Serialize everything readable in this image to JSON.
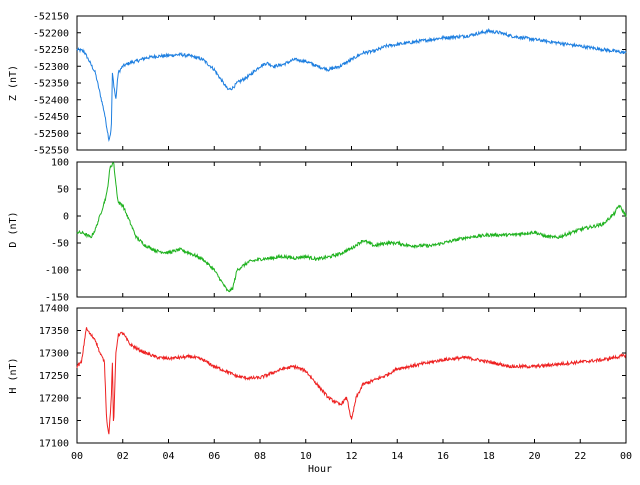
{
  "chart_data": [
    {
      "type": "line",
      "ylabel": "Z (nT)",
      "ylim": [
        -52550,
        -52150
      ],
      "yticks": [
        -52150,
        -52200,
        -52250,
        -52300,
        -52350,
        -52400,
        -52450,
        -52500,
        -52550
      ],
      "xlim": [
        0,
        24
      ],
      "color": "#1e7fe0",
      "x": [
        0,
        0.3,
        0.5,
        0.8,
        1.0,
        1.2,
        1.4,
        1.5,
        1.55,
        1.6,
        1.7,
        1.8,
        2.0,
        2.3,
        2.6,
        3.0,
        3.5,
        4.0,
        4.5,
        5.0,
        5.5,
        6.0,
        6.3,
        6.6,
        6.8,
        7.0,
        7.5,
        8.0,
        8.3,
        8.6,
        9.0,
        9.5,
        10.0,
        10.5,
        11.0,
        11.5,
        12.0,
        12.5,
        13.0,
        13.5,
        14.0,
        15.0,
        16.0,
        17.0,
        18.0,
        18.5,
        19.0,
        20.0,
        21.0,
        22.0,
        23.0,
        23.5,
        24.0
      ],
      "values": [
        -52250,
        -52255,
        -52280,
        -52320,
        -52380,
        -52440,
        -52520,
        -52490,
        -52320,
        -52350,
        -52400,
        -52320,
        -52300,
        -52290,
        -52285,
        -52275,
        -52270,
        -52268,
        -52265,
        -52270,
        -52280,
        -52310,
        -52340,
        -52370,
        -52365,
        -52350,
        -52330,
        -52300,
        -52290,
        -52300,
        -52295,
        -52280,
        -52285,
        -52300,
        -52310,
        -52300,
        -52280,
        -52260,
        -52255,
        -52240,
        -52235,
        -52225,
        -52215,
        -52210,
        -52195,
        -52200,
        -52210,
        -52220,
        -52230,
        -52240,
        -52250,
        -52255,
        -52260
      ]
    },
    {
      "type": "line",
      "ylabel": "D (nT)",
      "ylim": [
        -150,
        100
      ],
      "yticks": [
        100,
        50,
        0,
        -50,
        -100,
        -150
      ],
      "xlim": [
        0,
        24
      ],
      "color": "#1fb21f",
      "x": [
        0,
        0.3,
        0.6,
        0.8,
        1.0,
        1.3,
        1.45,
        1.6,
        1.7,
        1.8,
        2.0,
        2.3,
        2.6,
        3.0,
        3.5,
        4.0,
        4.5,
        5.0,
        5.5,
        6.0,
        6.3,
        6.6,
        6.8,
        7.0,
        7.5,
        8.0,
        8.5,
        9.0,
        9.5,
        10.0,
        10.5,
        11.0,
        11.5,
        12.0,
        12.5,
        13.0,
        13.5,
        14.0,
        14.5,
        15.0,
        15.5,
        16.0,
        17.0,
        18.0,
        19.0,
        20.0,
        20.5,
        21.0,
        22.0,
        23.0,
        23.5,
        23.7,
        24.0
      ],
      "values": [
        -30,
        -32,
        -40,
        -25,
        0,
        40,
        90,
        100,
        60,
        25,
        20,
        -10,
        -40,
        -55,
        -65,
        -68,
        -62,
        -70,
        -80,
        -100,
        -120,
        -140,
        -135,
        -100,
        -85,
        -80,
        -78,
        -75,
        -78,
        -75,
        -80,
        -76,
        -70,
        -60,
        -45,
        -55,
        -50,
        -50,
        -55,
        -55,
        -55,
        -50,
        -40,
        -35,
        -35,
        -30,
        -38,
        -40,
        -25,
        -15,
        5,
        20,
        0
      ]
    },
    {
      "type": "line",
      "ylabel": "H (nT)",
      "ylim": [
        17100,
        17400
      ],
      "yticks": [
        17400,
        17350,
        17300,
        17250,
        17200,
        17150,
        17100
      ],
      "xlim": [
        0,
        24
      ],
      "color": "#ee2222",
      "x": [
        0,
        0.2,
        0.4,
        0.6,
        0.8,
        1.0,
        1.2,
        1.3,
        1.4,
        1.5,
        1.55,
        1.6,
        1.7,
        1.8,
        2.0,
        2.3,
        2.6,
        3.0,
        3.5,
        4.0,
        4.5,
        5.0,
        5.5,
        6.0,
        6.5,
        7.0,
        7.5,
        8.0,
        8.5,
        9.0,
        9.5,
        10.0,
        10.5,
        11.0,
        11.5,
        11.8,
        12.0,
        12.2,
        12.5,
        13.0,
        13.5,
        14.0,
        15.0,
        16.0,
        17.0,
        18.0,
        19.0,
        20.0,
        21.0,
        22.0,
        23.0,
        24.0
      ],
      "values": [
        17270,
        17280,
        17355,
        17340,
        17330,
        17300,
        17280,
        17150,
        17120,
        17200,
        17280,
        17130,
        17300,
        17340,
        17345,
        17320,
        17310,
        17300,
        17290,
        17288,
        17290,
        17292,
        17285,
        17270,
        17260,
        17248,
        17244,
        17245,
        17255,
        17265,
        17270,
        17260,
        17230,
        17200,
        17185,
        17200,
        17150,
        17200,
        17230,
        17240,
        17250,
        17265,
        17275,
        17285,
        17290,
        17280,
        17270,
        17270,
        17275,
        17280,
        17285,
        17295
      ]
    }
  ],
  "x_axis": {
    "label": "Hour",
    "ticks": [
      "00",
      "02",
      "04",
      "06",
      "08",
      "10",
      "12",
      "14",
      "16",
      "18",
      "20",
      "22",
      "00"
    ]
  }
}
